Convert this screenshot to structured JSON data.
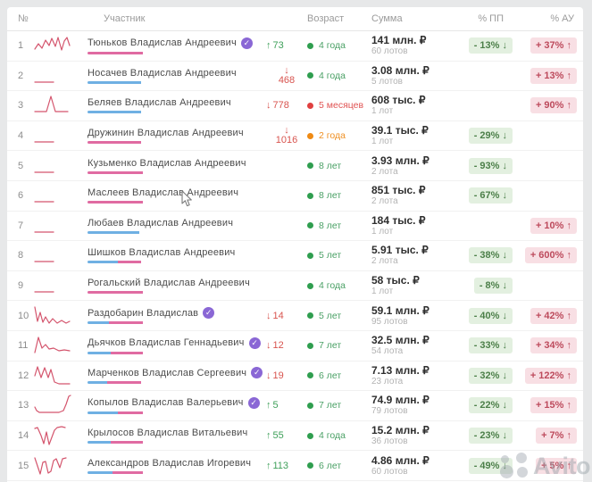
{
  "header": {
    "num": "№",
    "participant": "Участник",
    "age": "Возраст",
    "sum": "Сумма",
    "pp": "% ПП",
    "au": "% АУ"
  },
  "icons": {
    "verified_check": "✓"
  },
  "watermark": {
    "brand": "Avito"
  },
  "colors": {
    "sparkline": "#d4556d",
    "underline_blue": "#6fb0e3",
    "underline_pink": "#e06ba2",
    "badge_green_bg": "#e3f0e0",
    "badge_green_text": "#4c7f49",
    "badge_pink_bg": "#f8dfe4",
    "badge_pink_text": "#bd4a5c",
    "verified_purple": "#8a67d5"
  },
  "rows": [
    {
      "rank": "1",
      "name": "Тюньков Владислав Андреевич",
      "verified": true,
      "spark": "1,17 5,11 9,16 13,7 17,13 20,5 24,14 27,4 31,18 34,8 37,4 40,13",
      "underline": {
        "blue": 0,
        "pink": 62
      },
      "change": {
        "dir": "up",
        "arrow": "↑",
        "value": "73",
        "stacked": false
      },
      "age": {
        "label": "4 года",
        "status": "green"
      },
      "sum": "141 млн. ₽",
      "lots": "60 лотов",
      "pp": "- 13% ↓",
      "au": "+ 37% ↑"
    },
    {
      "rank": "2",
      "name": "Носачев Владислав Андреевич",
      "verified": false,
      "spark": "1,20 22,20",
      "underline": {
        "blue": 60,
        "pink": 0
      },
      "change": {
        "dir": "down",
        "arrow": "↓",
        "value": "468",
        "stacked": true
      },
      "age": {
        "label": "4 года",
        "status": "green"
      },
      "sum": "3.08 млн. ₽",
      "lots": "5 лотов",
      "pp": "",
      "au": "+ 13% ↑"
    },
    {
      "rank": "3",
      "name": "Беляев Владислав Андреевич",
      "verified": false,
      "spark": "1,20 14,20 19,3 24,20 38,20",
      "underline": {
        "blue": 60,
        "pink": 0
      },
      "change": {
        "dir": "down",
        "arrow": "↓",
        "value": "778",
        "stacked": false
      },
      "age": {
        "label": "5 месяцев",
        "status": "red"
      },
      "sum": "608 тыс. ₽",
      "lots": "1 лот",
      "pp": "",
      "au": "+ 90% ↑"
    },
    {
      "rank": "4",
      "name": "Дружинин Владислав Андреевич",
      "verified": false,
      "spark": "1,20 22,20",
      "underline": {
        "blue": 0,
        "pink": 60
      },
      "change": {
        "dir": "down",
        "arrow": "↓",
        "value": "1016",
        "stacked": true
      },
      "age": {
        "label": "2 года",
        "status": "orange"
      },
      "sum": "39.1 тыс. ₽",
      "lots": "1 лот",
      "pp": "- 29% ↓",
      "au": ""
    },
    {
      "rank": "5",
      "name": "Кузьменко Владислав Андреевич",
      "verified": false,
      "spark": "1,20 22,20",
      "underline": {
        "blue": 0,
        "pink": 62
      },
      "change": null,
      "age": {
        "label": "8 лет",
        "status": "green"
      },
      "sum": "3.93 млн. ₽",
      "lots": "2 лота",
      "pp": "- 93% ↓",
      "au": ""
    },
    {
      "rank": "6",
      "name": "Маслеев Владислав Андреевич",
      "verified": false,
      "spark": "1,20 22,20",
      "underline": {
        "blue": 0,
        "pink": 62
      },
      "change": null,
      "age": {
        "label": "8 лет",
        "status": "green"
      },
      "sum": "851 тыс. ₽",
      "lots": "2 лота",
      "pp": "- 67% ↓",
      "au": ""
    },
    {
      "rank": "7",
      "name": "Любаев Владислав Андреевич",
      "verified": false,
      "spark": "1,20 22,20",
      "underline": {
        "blue": 58,
        "pink": 0
      },
      "change": null,
      "age": {
        "label": "8 лет",
        "status": "green"
      },
      "sum": "184 тыс. ₽",
      "lots": "1 лот",
      "pp": "",
      "au": "+ 10% ↑"
    },
    {
      "rank": "8",
      "name": "Шишков Владислав Андреевич",
      "verified": false,
      "spark": "1,20 22,20",
      "underline": {
        "blue": 34,
        "pink": 26
      },
      "change": null,
      "age": {
        "label": "5 лет",
        "status": "green"
      },
      "sum": "5.91 тыс. ₽",
      "lots": "2 лота",
      "pp": "- 38% ↓",
      "au": "+ 600% ↑"
    },
    {
      "rank": "9",
      "name": "Рогальский Владислав Андреевич",
      "verified": false,
      "spark": "1,20 22,20",
      "underline": {
        "blue": 0,
        "pink": 62
      },
      "change": null,
      "age": {
        "label": "4 года",
        "status": "green"
      },
      "sum": "58 тыс. ₽",
      "lots": "1 лот",
      "pp": "- 8% ↓",
      "au": ""
    },
    {
      "rank": "10",
      "name": "Раздобарин Владислав",
      "verified": true,
      "spark": "1,3 4,19 7,9 10,20 13,14 17,21 21,16 26,21 31,18 36,21 40,19",
      "underline": {
        "blue": 24,
        "pink": 38
      },
      "change": {
        "dir": "down",
        "arrow": "↓",
        "value": "14",
        "stacked": false
      },
      "age": {
        "label": "5 лет",
        "status": "green"
      },
      "sum": "59.1 млн. ₽",
      "lots": "95 лотов",
      "pp": "- 40% ↓",
      "au": "+ 42% ↑"
    },
    {
      "rank": "11",
      "name": "Дьячков Владислав Геннадьевич",
      "verified": true,
      "spark": "1,21 5,4 9,16 13,12 17,17 22,16 28,19 34,18 40,19",
      "underline": {
        "blue": 26,
        "pink": 36
      },
      "change": {
        "dir": "down",
        "arrow": "↓",
        "value": "12",
        "stacked": false
      },
      "age": {
        "label": "7 лет",
        "status": "green"
      },
      "sum": "32.5 млн. ₽",
      "lots": "54 лота",
      "pp": "- 33% ↓",
      "au": "+ 34% ↑"
    },
    {
      "rank": "12",
      "name": "Марченков Владислав Сергеевич",
      "verified": true,
      "spark": "1,13 4,3 8,15 12,4 16,15 19,6 23,20 28,22 36,22 40,22",
      "underline": {
        "blue": 22,
        "pink": 38
      },
      "change": {
        "dir": "down",
        "arrow": "↓",
        "value": "19",
        "stacked": false
      },
      "age": {
        "label": "6 лет",
        "status": "green"
      },
      "sum": "7.13 млн. ₽",
      "lots": "23 лота",
      "pp": "- 32% ↓",
      "au": "+ 122% ↑"
    },
    {
      "rank": "13",
      "name": "Копылов Владислав Валерьевич",
      "verified": true,
      "spark": "1,15 3,19 6,21 12,21 20,21 28,21 33,19 36,12 39,3 41,2",
      "underline": {
        "blue": 34,
        "pink": 28
      },
      "change": {
        "dir": "up",
        "arrow": "↑",
        "value": "5",
        "stacked": false
      },
      "age": {
        "label": "7 лет",
        "status": "green"
      },
      "sum": "74.9 млн. ₽",
      "lots": "79 лотов",
      "pp": "- 22% ↓",
      "au": "+ 15% ↑"
    },
    {
      "rank": "14",
      "name": "Крылосов Владислав Витальевич",
      "verified": false,
      "spark": "1,5 4,4 8,13 11,22 14,9 17,23 20,15 23,7 26,4 31,3 35,4",
      "underline": {
        "blue": 26,
        "pink": 36
      },
      "change": {
        "dir": "up",
        "arrow": "↑",
        "value": "55",
        "stacked": false
      },
      "age": {
        "label": "4 года",
        "status": "green"
      },
      "sum": "15.2 млн. ₽",
      "lots": "36 лотов",
      "pp": "- 23% ↓",
      "au": "+ 7% ↑"
    },
    {
      "rank": "15",
      "name": "Александров Владислав Игоревич",
      "verified": false,
      "spark": "1,4 4,13 7,22 10,9 13,8 16,21 19,19 22,7 25,5 29,15 32,5 36,4",
      "underline": {
        "blue": 28,
        "pink": 34
      },
      "change": {
        "dir": "up",
        "arrow": "↑",
        "value": "113",
        "stacked": false
      },
      "age": {
        "label": "6 лет",
        "status": "green"
      },
      "sum": "4.86 млн. ₽",
      "lots": "60 лотов",
      "pp": "- 49% ↓",
      "au": "+ 5% ↑"
    }
  ]
}
